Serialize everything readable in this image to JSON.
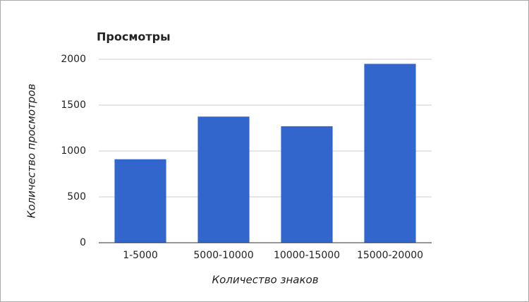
{
  "chart_data": {
    "type": "bar",
    "title": "Просмотры",
    "x_label": "Количество знаков",
    "y_label": "Количество просмотров",
    "categories": [
      "1-5000",
      "5000-10000",
      "10000-15000",
      "15000-20000"
    ],
    "values": [
      910,
      1375,
      1270,
      1950
    ],
    "color": "#3366cc",
    "ylim": [
      0,
      2000
    ],
    "yticks": [
      0,
      500,
      1000,
      1500,
      2000
    ],
    "grid": true
  }
}
